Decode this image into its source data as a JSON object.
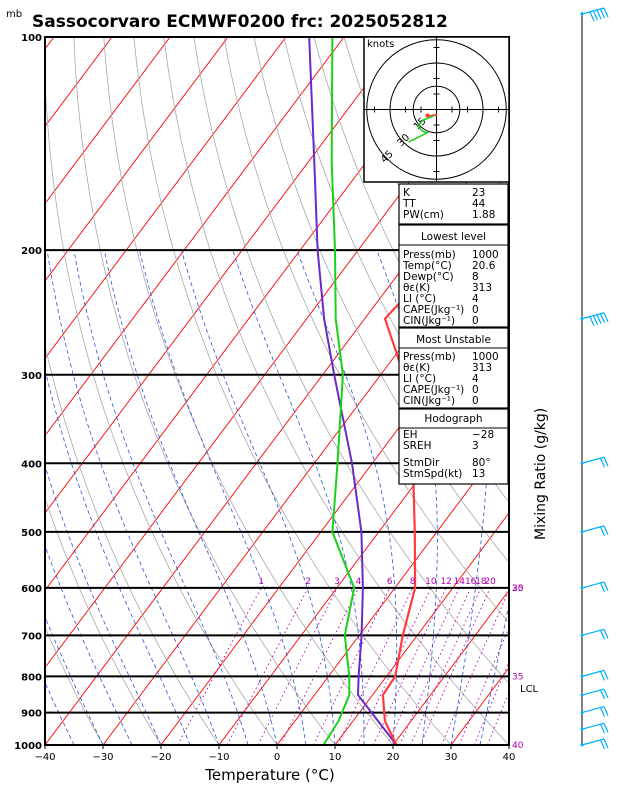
{
  "title": "Sassocorvaro ECMWF0200  frc: 2025052812",
  "chart_data": {
    "type": "skew-t",
    "title": "Sassocorvaro ECMWF0200  frc: 2025052812",
    "pressure_unit_label": "mb",
    "xlabel": "Temperature (°C)",
    "right_label": "Mixing Ratio (g/kg)",
    "xlim": [
      -40,
      40
    ],
    "plim": [
      1000,
      100
    ],
    "x_ticks": [
      "−40",
      "−30",
      "−20",
      "−10",
      "0",
      "10",
      "20",
      "30",
      "40"
    ],
    "p_ticks": [
      {
        "p": 100,
        "label": "100"
      },
      {
        "p": 200,
        "label": "200"
      },
      {
        "p": 300,
        "label": "300"
      },
      {
        "p": 400,
        "label": "400"
      },
      {
        "p": 500,
        "label": "500"
      },
      {
        "p": 600,
        "label": "600"
      },
      {
        "p": 700,
        "label": "700"
      },
      {
        "p": 800,
        "label": "800"
      },
      {
        "p": 900,
        "label": "900"
      },
      {
        "p": 1000,
        "label": "1000"
      }
    ],
    "temperature_profile": [
      {
        "p": 1000,
        "t": 20.6
      },
      {
        "p": 925,
        "t": 15.5
      },
      {
        "p": 850,
        "t": 11.8
      },
      {
        "p": 800,
        "t": 11.5
      },
      {
        "p": 700,
        "t": 7.5
      },
      {
        "p": 600,
        "t": 3.5
      },
      {
        "p": 500,
        "t": -3.8
      },
      {
        "p": 400,
        "t": -13
      },
      {
        "p": 300,
        "t": -26
      },
      {
        "p": 250,
        "t": -36.5
      },
      {
        "p": 200,
        "t": -34.5
      },
      {
        "p": 150,
        "t": -31.5
      },
      {
        "p": 100,
        "t": -25
      }
    ],
    "dewpoint_profile": [
      {
        "p": 1000,
        "t": 8
      },
      {
        "p": 925,
        "t": 7.5
      },
      {
        "p": 850,
        "t": 6
      },
      {
        "p": 800,
        "t": 3.6
      },
      {
        "p": 700,
        "t": -2.5
      },
      {
        "p": 600,
        "t": -7
      },
      {
        "p": 500,
        "t": -18
      },
      {
        "p": 400,
        "t": -26
      },
      {
        "p": 300,
        "t": -36.5
      },
      {
        "p": 250,
        "t": -45
      },
      {
        "p": 200,
        "t": -54
      },
      {
        "p": 150,
        "t": -66
      },
      {
        "p": 100,
        "t": -82
      }
    ],
    "parcel_profile": [
      {
        "p": 1000,
        "t": 20.6
      },
      {
        "p": 850,
        "t": 7.5
      },
      {
        "p": 800,
        "t": 5.2
      },
      {
        "p": 700,
        "t": 0.4
      },
      {
        "p": 600,
        "t": -5.5
      },
      {
        "p": 500,
        "t": -13
      },
      {
        "p": 400,
        "t": -23.5
      },
      {
        "p": 300,
        "t": -38
      },
      {
        "p": 250,
        "t": -47
      },
      {
        "p": 200,
        "t": -57
      },
      {
        "p": 150,
        "t": -69
      },
      {
        "p": 100,
        "t": -86
      }
    ],
    "mixing_ratio_labels": [
      "1",
      "2",
      "3",
      "4",
      "6",
      "8",
      "10",
      "12",
      "14",
      "16",
      "18",
      "20",
      "25",
      "30",
      "35",
      "40"
    ],
    "mixing_ratio_values": [
      1,
      2,
      3,
      4,
      6,
      8,
      10,
      12,
      14,
      16,
      18,
      20,
      25,
      30,
      35,
      40
    ],
    "lcl_label": "LCL",
    "lcl_pressure": 835,
    "wind_barbs_p": [
      100,
      250,
      400,
      500,
      600,
      700,
      800,
      850,
      900,
      950,
      1000
    ],
    "hodograph": {
      "unit_label": "knots",
      "ring_labels": [
        "15",
        "30",
        "45"
      ]
    },
    "colors": {
      "temperature": "#ff3b3b",
      "dewpoint": "#1ad11a",
      "parcel": "#6a2ac8",
      "isotherm": "#ff0000",
      "dry_adiabat": "#a8a8a8",
      "moist_adiabat": "#2a52d6",
      "mixing_ratio": "#b000b0",
      "barbs": "#00b0ff"
    }
  },
  "indices_box": {
    "rows": [
      {
        "label": "K",
        "value": "23"
      },
      {
        "label": "TT",
        "value": "44"
      },
      {
        "label": "PW(cm)",
        "value": "1.88"
      }
    ]
  },
  "lowest_level": {
    "heading": "Lowest level",
    "rows": [
      {
        "label": "Press(mb)",
        "value": "1000"
      },
      {
        "label": "Temp(°C)",
        "value": "20.6"
      },
      {
        "label": "Dewp(°C)",
        "value": "8"
      },
      {
        "label": "θε(K)",
        "value": "313"
      },
      {
        "label": "LI (°C)",
        "value": "4"
      },
      {
        "label": "CAPE(Jkg⁻¹)",
        "value": "0"
      },
      {
        "label": "CIN(Jkg⁻¹)",
        "value": "0"
      }
    ]
  },
  "most_unstable": {
    "heading": "Most Unstable",
    "rows": [
      {
        "label": "Press(mb)",
        "value": "1000"
      },
      {
        "label": "θε(K)",
        "value": "313"
      },
      {
        "label": "LI (°C)",
        "value": "4"
      },
      {
        "label": "CAPE(Jkg⁻¹)",
        "value": "0"
      },
      {
        "label": "CIN(Jkg⁻¹)",
        "value": "0"
      }
    ]
  },
  "hodograph_box": {
    "heading": "Hodograph",
    "rows": [
      {
        "label": "EH",
        "value": "−28"
      },
      {
        "label": "SREH",
        "value": "3"
      }
    ],
    "rows2": [
      {
        "label": "StmDir",
        "value": "80°"
      },
      {
        "label": "StmSpd(kt)",
        "value": "13"
      }
    ]
  }
}
